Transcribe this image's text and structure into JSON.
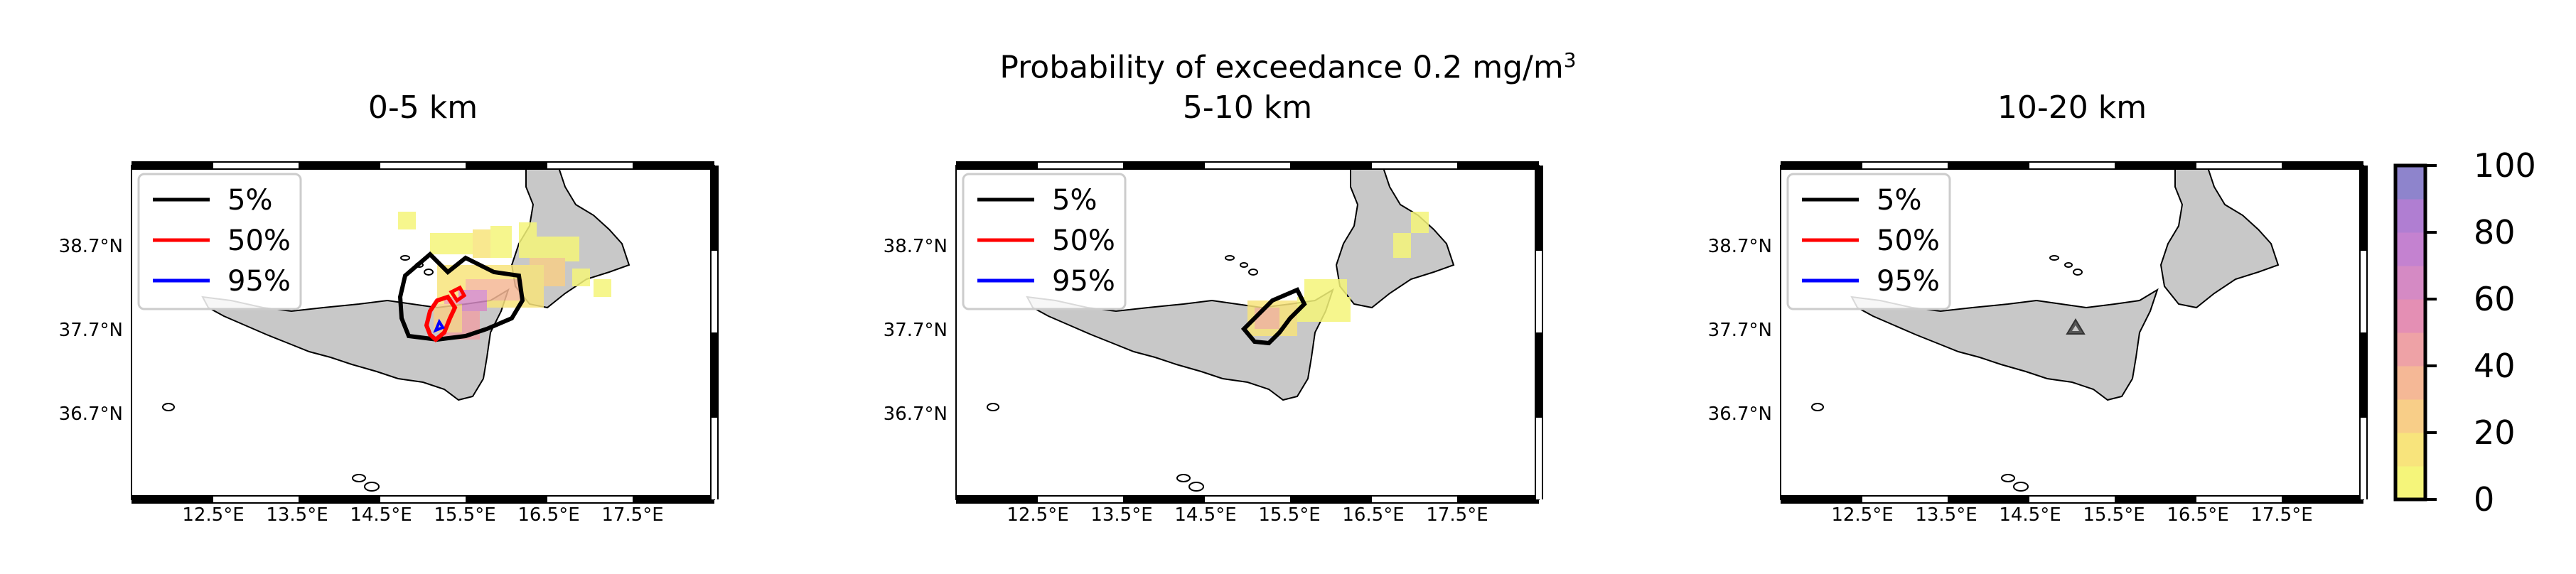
{
  "figure": {
    "suptitle_main": "Probability of exceedance 0.2 mg/m",
    "suptitle_sup": "3"
  },
  "panels": [
    {
      "title": "0-5 km",
      "y_ticks": [
        "38.7°N",
        "37.7°N",
        "36.7°N"
      ],
      "x_ticks": [
        "12.5°E",
        "13.5°E",
        "14.5°E",
        "15.5°E",
        "16.5°E",
        "17.5°E"
      ],
      "legend": [
        "5%",
        "50%",
        "95%"
      ]
    },
    {
      "title": "5-10 km",
      "y_ticks": [
        "38.7°N",
        "37.7°N",
        "36.7°N"
      ],
      "x_ticks": [
        "12.5°E",
        "13.5°E",
        "14.5°E",
        "15.5°E",
        "16.5°E",
        "17.5°E"
      ],
      "legend": [
        "5%",
        "50%",
        "95%"
      ]
    },
    {
      "title": "10-20 km",
      "y_ticks": [
        "38.7°N",
        "37.7°N",
        "36.7°N"
      ],
      "x_ticks": [
        "12.5°E",
        "13.5°E",
        "14.5°E",
        "15.5°E",
        "16.5°E",
        "17.5°E"
      ],
      "legend": [
        "5%",
        "50%",
        "95%"
      ]
    }
  ],
  "legend_colors": [
    "#000000",
    "#ff0000",
    "#0000ff"
  ],
  "colorbar": {
    "ticks": [
      "100",
      "80",
      "60",
      "40",
      "20",
      "0"
    ],
    "colors": [
      "#f5f57a",
      "#f8e47c",
      "#f8ce88",
      "#f5b896",
      "#eea2a6",
      "#e48fb4",
      "#d58ac4",
      "#c482d0",
      "#b07ed2",
      "#8e84cc"
    ]
  },
  "colors": {
    "land": "#c8c8c8",
    "sea": "#ffffff",
    "volcano_marker": "#555555"
  }
}
